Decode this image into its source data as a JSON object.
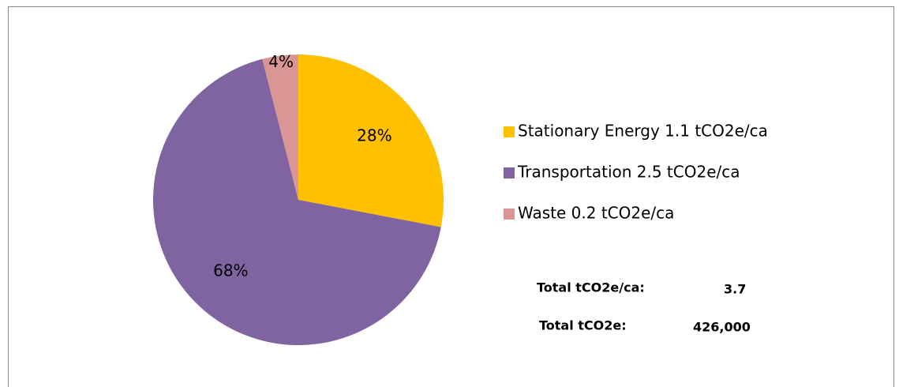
{
  "chart_data": {
    "type": "pie",
    "categories": [
      "Stationary Energy 1.1 tCO2e/ca",
      "Transportation 2.5 tCO2e/ca",
      "Waste 0.2 tCO2e/ca"
    ],
    "values": [
      28,
      68,
      4
    ],
    "value_labels": [
      "28%",
      "68%",
      "4%"
    ],
    "colors": [
      "#FFC000",
      "#8064A2",
      "#D99694"
    ],
    "legend": "right",
    "totals": [
      {
        "label": "Total tCO2e/ca:",
        "value": "3.7"
      },
      {
        "label": "Total tCO2e:",
        "value": "426,000"
      }
    ]
  }
}
